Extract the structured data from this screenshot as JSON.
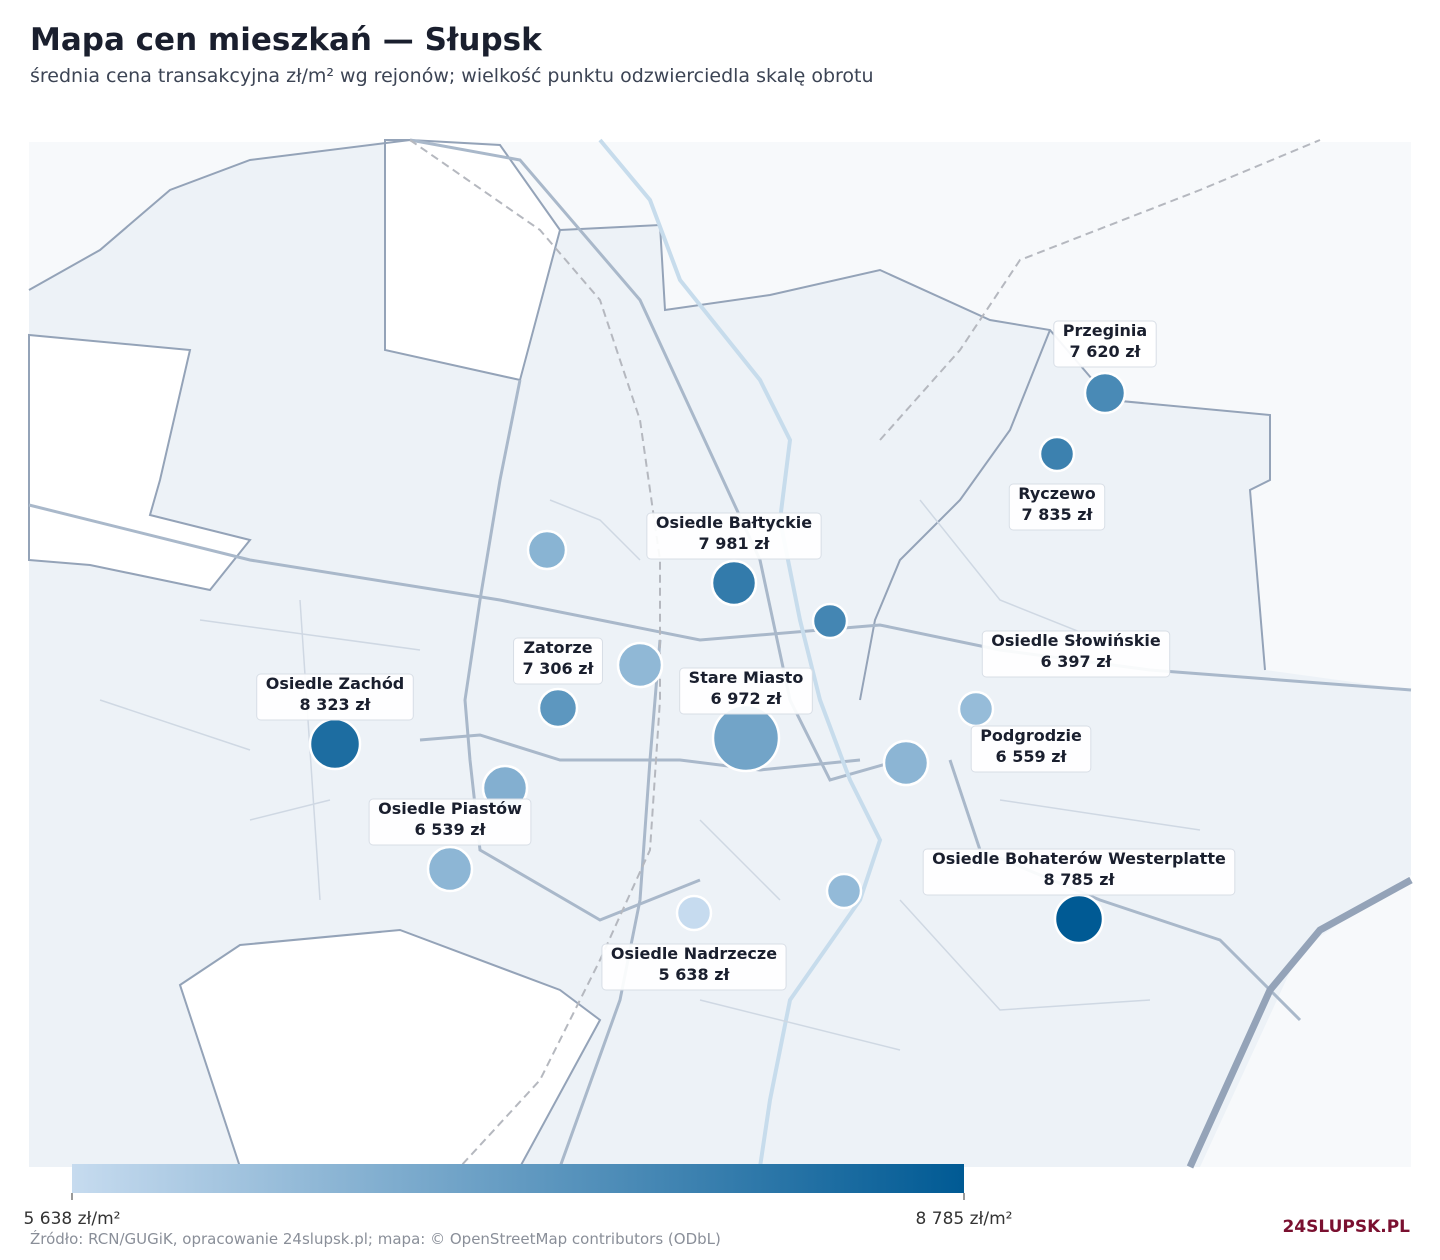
{
  "chart_data": {
    "type": "bubble-map",
    "title": "Mapa cen mieszkań — Słupsk",
    "subtitle": "średnia cena transakcyjna zł/m² wg rejonów; wielkość punktu odzwierciedla skalę obrotu",
    "series": [
      {
        "names": [
          "Przeginia",
          "Ryczewo",
          "Osiedle Bałtyckie",
          null,
          null,
          "Zatorze",
          null,
          "Stare Miasto",
          "Osiedle Zachód",
          null,
          "Osiedle Piastów",
          "Osiedle Nadrzecze",
          null,
          "Podgrodzie",
          "Osiedle Słowińskie",
          "Osiedle Bohaterów Westerplatte"
        ],
        "values": [
          7620,
          7835,
          7981,
          7700,
          6600,
          7306,
          6500,
          6972,
          8323,
          6700,
          6539,
          5638,
          6450,
          6559,
          6397,
          8785
        ],
        "value_labels": [
          "7 620 zł",
          "7 835 zł",
          "7 981 zł",
          null,
          null,
          "7 306 zł",
          null,
          "6 972 zł",
          "8 323 zł",
          null,
          "6 539 zł",
          "5 638 zł",
          null,
          "6 559 zł",
          "6 397 zł",
          "8 785 zł"
        ],
        "sizes": [
          20,
          17,
          22,
          17,
          19,
          19,
          22,
          33,
          25,
          22,
          22,
          17,
          17,
          22,
          17,
          24
        ]
      }
    ],
    "colorbar": {
      "lim": [
        5638,
        8785
      ],
      "colors": [
        "#c6dbef",
        "#005a94"
      ],
      "ticks": [
        {
          "value": 5638,
          "label": "5 638 zł/m²"
        },
        {
          "value": 8785,
          "label": "8 785 zł/m²"
        }
      ]
    },
    "source": "Źródło: RCN/GUGiK, opracowanie 24slupsk.pl; mapa: © OpenStreetMap contributors (ODbL)",
    "logo": "24SLUPSK.PL"
  }
}
